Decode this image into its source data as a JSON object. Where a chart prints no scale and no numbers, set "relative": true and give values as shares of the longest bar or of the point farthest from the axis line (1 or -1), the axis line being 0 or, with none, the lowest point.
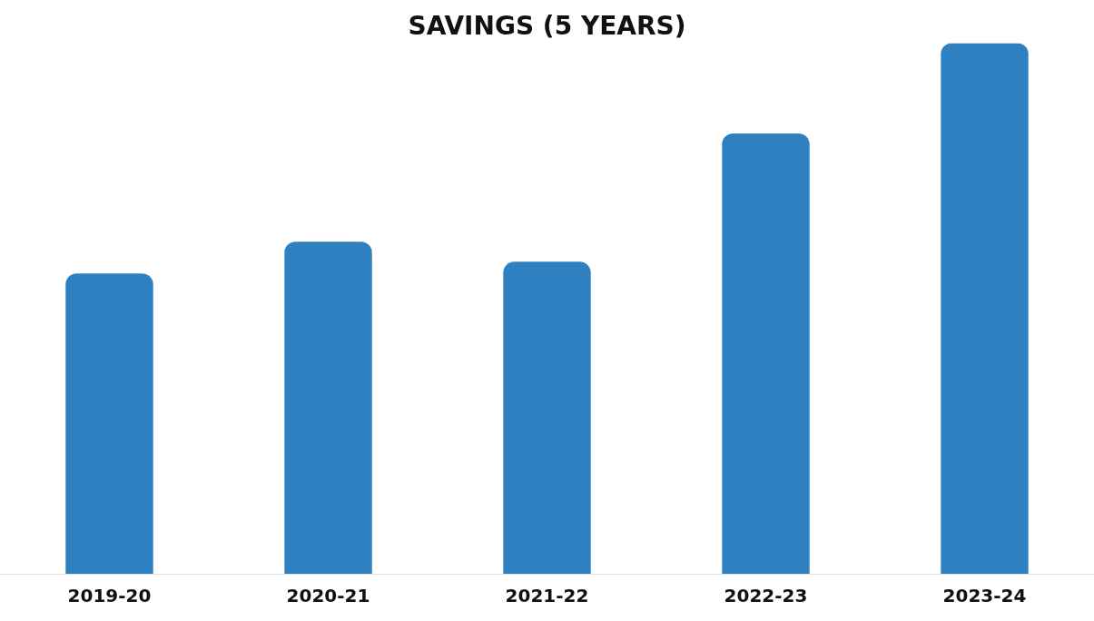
{
  "chart_data": {
    "type": "bar",
    "title": "SAVINGS (5 YEARS)",
    "categories": [
      "2019-20",
      "2020-21",
      "2021-22",
      "2022-23",
      "2023-24"
    ],
    "values": [
      0.566,
      0.626,
      0.588,
      0.83,
      1
    ],
    "color": "#2e80c0",
    "relative": true,
    "grid": false,
    "legend": false
  }
}
